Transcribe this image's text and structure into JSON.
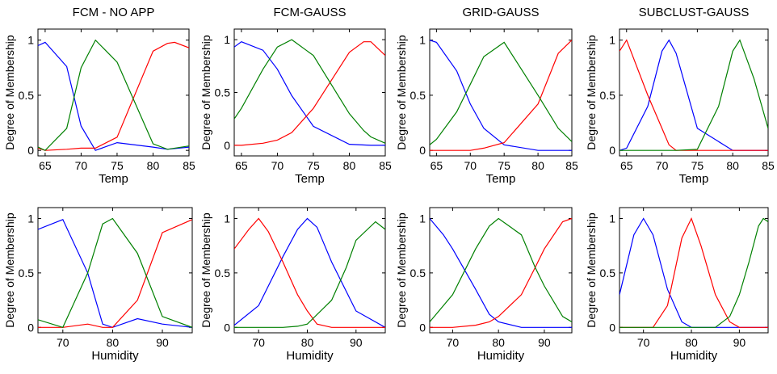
{
  "colors": {
    "blue": "#0000ff",
    "red": "#ff0000",
    "green": "#008000"
  },
  "chart_data": [
    {
      "type": "line",
      "title": "FCM - NO APP",
      "xlabel": "Temp",
      "ylabel": "Degree of Membership",
      "xlim": [
        64,
        85
      ],
      "ylim": [
        -0.05,
        1.1
      ],
      "xticks": [
        "65",
        "70",
        "75",
        "80",
        "85"
      ],
      "yticks": [
        "0",
        "0.5",
        "1"
      ],
      "series": [
        {
          "color": "blue",
          "x": [
            64,
            65,
            68,
            70,
            72,
            75,
            80,
            82,
            85
          ],
          "y": [
            0.95,
            0.98,
            0.76,
            0.22,
            0.0,
            0.07,
            0.03,
            0.01,
            0.03
          ]
        },
        {
          "color": "red",
          "x": [
            64,
            65,
            68,
            70,
            72,
            75,
            80,
            82,
            83,
            85
          ],
          "y": [
            0.02,
            0.0,
            0.01,
            0.02,
            0.02,
            0.12,
            0.9,
            0.97,
            0.98,
            0.93
          ]
        },
        {
          "color": "green",
          "x": [
            64,
            65,
            68,
            70,
            72,
            75,
            80,
            82,
            85
          ],
          "y": [
            0.03,
            0.0,
            0.2,
            0.75,
            1.0,
            0.8,
            0.06,
            0.01,
            0.04
          ]
        }
      ]
    },
    {
      "type": "line",
      "title": "FCM-GAUSS",
      "xlabel": "Temp",
      "ylabel": "Degree of Membership",
      "xlim": [
        64,
        85
      ],
      "ylim": [
        -0.1,
        1.1
      ],
      "xticks": [
        "65",
        "70",
        "75",
        "80",
        "85"
      ],
      "yticks": [
        "0",
        "0.5",
        "1"
      ],
      "series": [
        {
          "color": "blue",
          "x": [
            64,
            65,
            68,
            70,
            72,
            75,
            80,
            83,
            85
          ],
          "y": [
            0.93,
            0.98,
            0.9,
            0.72,
            0.47,
            0.18,
            0.01,
            0.0,
            0.0
          ]
        },
        {
          "color": "red",
          "x": [
            64,
            65,
            68,
            70,
            72,
            75,
            80,
            82,
            83,
            85
          ],
          "y": [
            0.0,
            0.0,
            0.02,
            0.05,
            0.12,
            0.35,
            0.88,
            0.98,
            0.98,
            0.85
          ]
        },
        {
          "color": "green",
          "x": [
            64,
            65,
            68,
            70,
            72,
            75,
            80,
            82,
            83,
            85
          ],
          "y": [
            0.25,
            0.35,
            0.72,
            0.93,
            1.0,
            0.85,
            0.3,
            0.14,
            0.08,
            0.02
          ]
        }
      ]
    },
    {
      "type": "line",
      "title": "GRID-GAUSS",
      "xlabel": "Temp",
      "ylabel": "Degree of Membership",
      "xlim": [
        64,
        85
      ],
      "ylim": [
        -0.05,
        1.1
      ],
      "xticks": [
        "65",
        "70",
        "75",
        "80",
        "85"
      ],
      "yticks": [
        "0",
        "0.5",
        "1"
      ],
      "series": [
        {
          "color": "blue",
          "x": [
            64,
            65,
            68,
            70,
            72,
            75,
            80,
            83,
            85
          ],
          "y": [
            1.0,
            0.98,
            0.72,
            0.42,
            0.2,
            0.05,
            0.0,
            0.0,
            0.0
          ]
        },
        {
          "color": "red",
          "x": [
            64,
            65,
            68,
            70,
            72,
            75,
            80,
            83,
            85
          ],
          "y": [
            0.0,
            0.0,
            0.0,
            0.0,
            0.02,
            0.07,
            0.42,
            0.88,
            1.0
          ]
        },
        {
          "color": "green",
          "x": [
            64,
            65,
            68,
            70,
            72,
            75,
            80,
            83,
            85
          ],
          "y": [
            0.05,
            0.1,
            0.35,
            0.6,
            0.85,
            0.98,
            0.5,
            0.2,
            0.08
          ]
        }
      ]
    },
    {
      "type": "line",
      "title": "SUBCLUST-GAUSS",
      "xlabel": "Temp",
      "ylabel": "Degree of Membership",
      "xlim": [
        64,
        85
      ],
      "ylim": [
        -0.05,
        1.1
      ],
      "xticks": [
        "65",
        "70",
        "75",
        "80",
        "85"
      ],
      "yticks": [
        "0",
        "0.5",
        "1"
      ],
      "series": [
        {
          "color": "blue",
          "x": [
            64,
            65,
            68,
            70,
            71,
            72,
            75,
            80,
            85
          ],
          "y": [
            0.0,
            0.02,
            0.4,
            0.9,
            1.0,
            0.88,
            0.2,
            0.0,
            0.0
          ]
        },
        {
          "color": "red",
          "x": [
            64,
            65,
            68,
            70,
            71,
            72,
            75,
            80,
            85
          ],
          "y": [
            0.9,
            1.0,
            0.5,
            0.2,
            0.05,
            0.0,
            0.0,
            0.0,
            0.0
          ]
        },
        {
          "color": "green",
          "x": [
            64,
            68,
            72,
            75,
            78,
            80,
            81,
            83,
            85
          ],
          "y": [
            0.0,
            0.0,
            0.0,
            0.01,
            0.4,
            0.9,
            1.0,
            0.65,
            0.2
          ]
        }
      ]
    },
    {
      "type": "line",
      "title": "",
      "xlabel": "Humidity",
      "ylabel": "Degree of Membership",
      "xlim": [
        65,
        96
      ],
      "ylim": [
        -0.05,
        1.1
      ],
      "xticks": [
        "70",
        "80",
        "90"
      ],
      "yticks": [
        "0",
        "0.5",
        "1"
      ],
      "series": [
        {
          "color": "blue",
          "x": [
            65,
            70,
            75,
            78,
            80,
            85,
            90,
            96
          ],
          "y": [
            0.9,
            0.99,
            0.5,
            0.03,
            0.0,
            0.08,
            0.03,
            0.0
          ]
        },
        {
          "color": "red",
          "x": [
            65,
            70,
            75,
            78,
            80,
            85,
            90,
            96
          ],
          "y": [
            0.0,
            0.0,
            0.03,
            0.0,
            0.0,
            0.25,
            0.87,
            0.99
          ]
        },
        {
          "color": "green",
          "x": [
            65,
            70,
            75,
            78,
            80,
            85,
            90,
            96
          ],
          "y": [
            0.07,
            0.0,
            0.5,
            0.95,
            1.0,
            0.68,
            0.1,
            0.0
          ]
        }
      ]
    },
    {
      "type": "line",
      "title": "",
      "xlabel": "Humidity",
      "ylabel": "Degree of Membership",
      "xlim": [
        65,
        96
      ],
      "ylim": [
        -0.05,
        1.1
      ],
      "xticks": [
        "70",
        "80",
        "90"
      ],
      "yticks": [
        "0",
        "0.5",
        "1"
      ],
      "series": [
        {
          "color": "blue",
          "x": [
            65,
            70,
            75,
            78,
            80,
            82,
            85,
            90,
            96
          ],
          "y": [
            0.02,
            0.2,
            0.65,
            0.9,
            1.0,
            0.92,
            0.6,
            0.15,
            0.0
          ]
        },
        {
          "color": "red",
          "x": [
            65,
            68,
            70,
            72,
            75,
            78,
            80,
            82,
            85,
            90,
            96
          ],
          "y": [
            0.72,
            0.9,
            1.0,
            0.88,
            0.6,
            0.3,
            0.15,
            0.03,
            0.0,
            0.0,
            0.0
          ]
        },
        {
          "color": "green",
          "x": [
            65,
            70,
            75,
            78,
            80,
            85,
            88,
            90,
            94,
            96
          ],
          "y": [
            0.0,
            0.0,
            0.0,
            0.01,
            0.03,
            0.25,
            0.55,
            0.8,
            0.97,
            0.9
          ]
        }
      ]
    },
    {
      "type": "line",
      "title": "",
      "xlabel": "Humidity",
      "ylabel": "Degree of Membership",
      "xlim": [
        65,
        96
      ],
      "ylim": [
        -0.05,
        1.1
      ],
      "xticks": [
        "70",
        "80",
        "90"
      ],
      "yticks": [
        "0",
        "0.5",
        "1"
      ],
      "series": [
        {
          "color": "blue",
          "x": [
            65,
            68,
            70,
            75,
            78,
            80,
            85,
            90,
            96
          ],
          "y": [
            1.0,
            0.85,
            0.72,
            0.35,
            0.12,
            0.05,
            0.0,
            0.0,
            0.0
          ]
        },
        {
          "color": "red",
          "x": [
            65,
            70,
            75,
            78,
            80,
            85,
            88,
            90,
            94,
            96
          ],
          "y": [
            0.0,
            0.0,
            0.02,
            0.05,
            0.1,
            0.3,
            0.55,
            0.72,
            0.97,
            1.0
          ]
        },
        {
          "color": "green",
          "x": [
            65,
            70,
            75,
            78,
            80,
            85,
            88,
            90,
            94,
            96
          ],
          "y": [
            0.05,
            0.3,
            0.72,
            0.93,
            1.0,
            0.85,
            0.55,
            0.38,
            0.1,
            0.05
          ]
        }
      ]
    },
    {
      "type": "line",
      "title": "",
      "xlabel": "Humidity",
      "ylabel": "Degree of Membership",
      "xlim": [
        65,
        96
      ],
      "ylim": [
        -0.05,
        1.1
      ],
      "xticks": [
        "70",
        "80",
        "90"
      ],
      "yticks": [
        "0",
        "0.5",
        "1"
      ],
      "series": [
        {
          "color": "blue",
          "x": [
            65,
            68,
            70,
            72,
            75,
            78,
            80,
            85,
            96
          ],
          "y": [
            0.3,
            0.85,
            1.0,
            0.85,
            0.35,
            0.05,
            0.0,
            0.0,
            0.0
          ]
        },
        {
          "color": "red",
          "x": [
            65,
            72,
            75,
            78,
            80,
            82,
            85,
            88,
            90,
            96
          ],
          "y": [
            0.0,
            0.0,
            0.2,
            0.82,
            1.0,
            0.75,
            0.3,
            0.05,
            0.0,
            0.0
          ]
        },
        {
          "color": "green",
          "x": [
            65,
            80,
            85,
            88,
            90,
            92,
            94,
            95,
            96
          ],
          "y": [
            0.0,
            0.0,
            0.0,
            0.1,
            0.3,
            0.6,
            0.93,
            1.0,
            0.97
          ]
        }
      ]
    }
  ]
}
